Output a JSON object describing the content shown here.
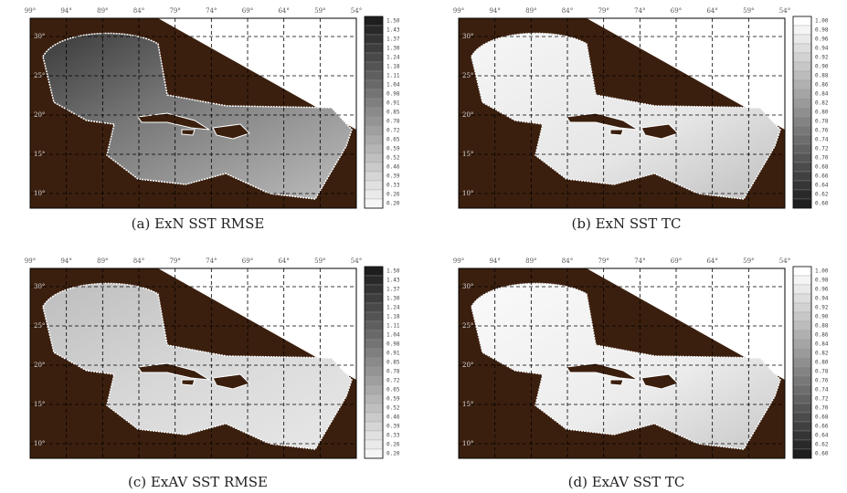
{
  "lon_labels": [
    "99°",
    "94°",
    "89°",
    "84°",
    "79°",
    "74°",
    "69°",
    "64°",
    "59°",
    "54°"
  ],
  "lat_labels": [
    "30°",
    "25°",
    "20°",
    "15°",
    "10°"
  ],
  "panels": [
    {
      "caption": "(a) ExN SST RMSE",
      "colorbar": [
        "1.50",
        "1.43",
        "1.37",
        "1.30",
        "1.24",
        "1.18",
        "1.11",
        "1.04",
        "0.98",
        "0.91",
        "0.85",
        "0.78",
        "0.72",
        "0.65",
        "0.59",
        "0.52",
        "0.46",
        "0.39",
        "0.33",
        "0.26",
        "0.20"
      ]
    },
    {
      "caption": "(b) ExN SST TC",
      "colorbar": [
        "1.00",
        "0.98",
        "0.96",
        "0.94",
        "0.92",
        "0.90",
        "0.88",
        "0.86",
        "0.84",
        "0.82",
        "0.80",
        "0.78",
        "0.76",
        "0.74",
        "0.72",
        "0.70",
        "0.68",
        "0.66",
        "0.64",
        "0.62",
        "0.60"
      ]
    },
    {
      "caption": "(c) ExAV SST RMSE",
      "colorbar": [
        "1.50",
        "1.43",
        "1.37",
        "1.30",
        "1.24",
        "1.18",
        "1.11",
        "1.04",
        "0.98",
        "0.91",
        "0.85",
        "0.78",
        "0.72",
        "0.65",
        "0.59",
        "0.52",
        "0.46",
        "0.39",
        "0.33",
        "0.26",
        "0.20"
      ]
    },
    {
      "caption": "(d) ExAV SST TC",
      "colorbar": [
        "1.00",
        "0.98",
        "0.96",
        "0.94",
        "0.92",
        "0.90",
        "0.88",
        "0.86",
        "0.84",
        "0.82",
        "0.80",
        "0.78",
        "0.76",
        "0.74",
        "0.72",
        "0.70",
        "0.68",
        "0.66",
        "0.64",
        "0.62",
        "0.60"
      ]
    }
  ]
}
